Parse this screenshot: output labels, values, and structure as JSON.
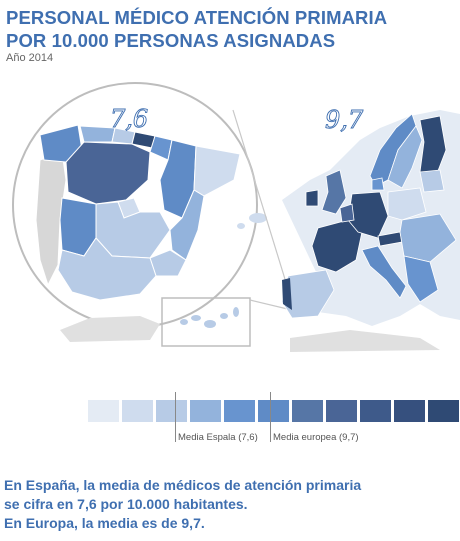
{
  "header": {
    "title_line1": "PERSONAL MÉDICO ATENCIÓN PRIMARIA",
    "title_line2": "POR 10.000 PERSONAS ASIGNADAS",
    "subtitle": "Año 2014"
  },
  "maps": {
    "spain_value": "7,6",
    "europe_value": "9,7"
  },
  "legend": {
    "swatches": [
      "#e4ebf4",
      "#cfdcee",
      "#b7cbe6",
      "#93b3dc",
      "#6894cf",
      "#5f8bc6",
      "#5676a6",
      "#4a6596",
      "#3e5a8a",
      "#36507e",
      "#2f4a74"
    ],
    "markers": [
      {
        "label": "Media Espala (7,6)",
        "value": 7.6
      },
      {
        "label": "Media europea (9,7)",
        "value": 9.7
      }
    ]
  },
  "footer": {
    "line1": "En España, la media de médicos de atención primaria",
    "line2": "se cifra en 7,6 por 10.000 habitantes.",
    "line3": "En Europa, la media es de 9,7."
  },
  "colors": {
    "accent": "#3f6fb0",
    "dark": "#2f4a74",
    "mid": "#5f8bc6",
    "light": "#93b3dc",
    "pale": "#cfdcee",
    "gray": "#d7d7d7"
  }
}
